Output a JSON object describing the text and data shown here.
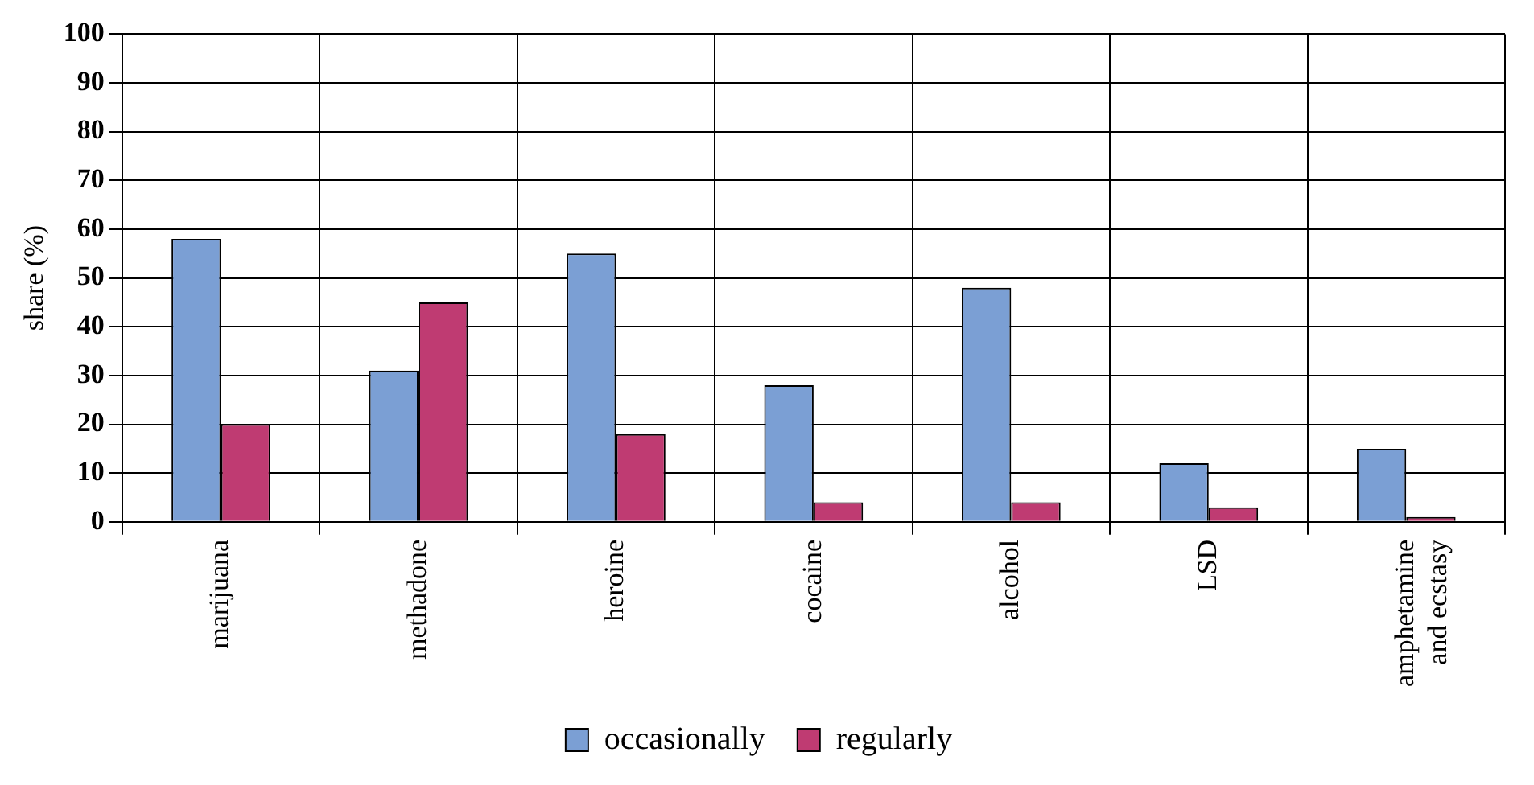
{
  "chart_data": {
    "type": "bar",
    "ylabel": "share (%)",
    "categories": [
      "marijuana",
      "methadone",
      "heroine",
      "cocaine",
      "alcohol",
      "LSD",
      "amphetamine and ecstasy"
    ],
    "series": [
      {
        "name": "occasionally",
        "color": "#7b9fd4",
        "values": [
          58,
          31,
          55,
          28,
          48,
          12,
          15
        ]
      },
      {
        "name": "regularly",
        "color": "#bf3b72",
        "values": [
          20,
          45,
          18,
          4,
          4,
          3,
          1
        ]
      }
    ],
    "ylim": [
      0,
      100
    ],
    "yticks": [
      0,
      10,
      20,
      30,
      40,
      50,
      60,
      70,
      80,
      90,
      100
    ],
    "grid": true,
    "legend": "bottom"
  }
}
